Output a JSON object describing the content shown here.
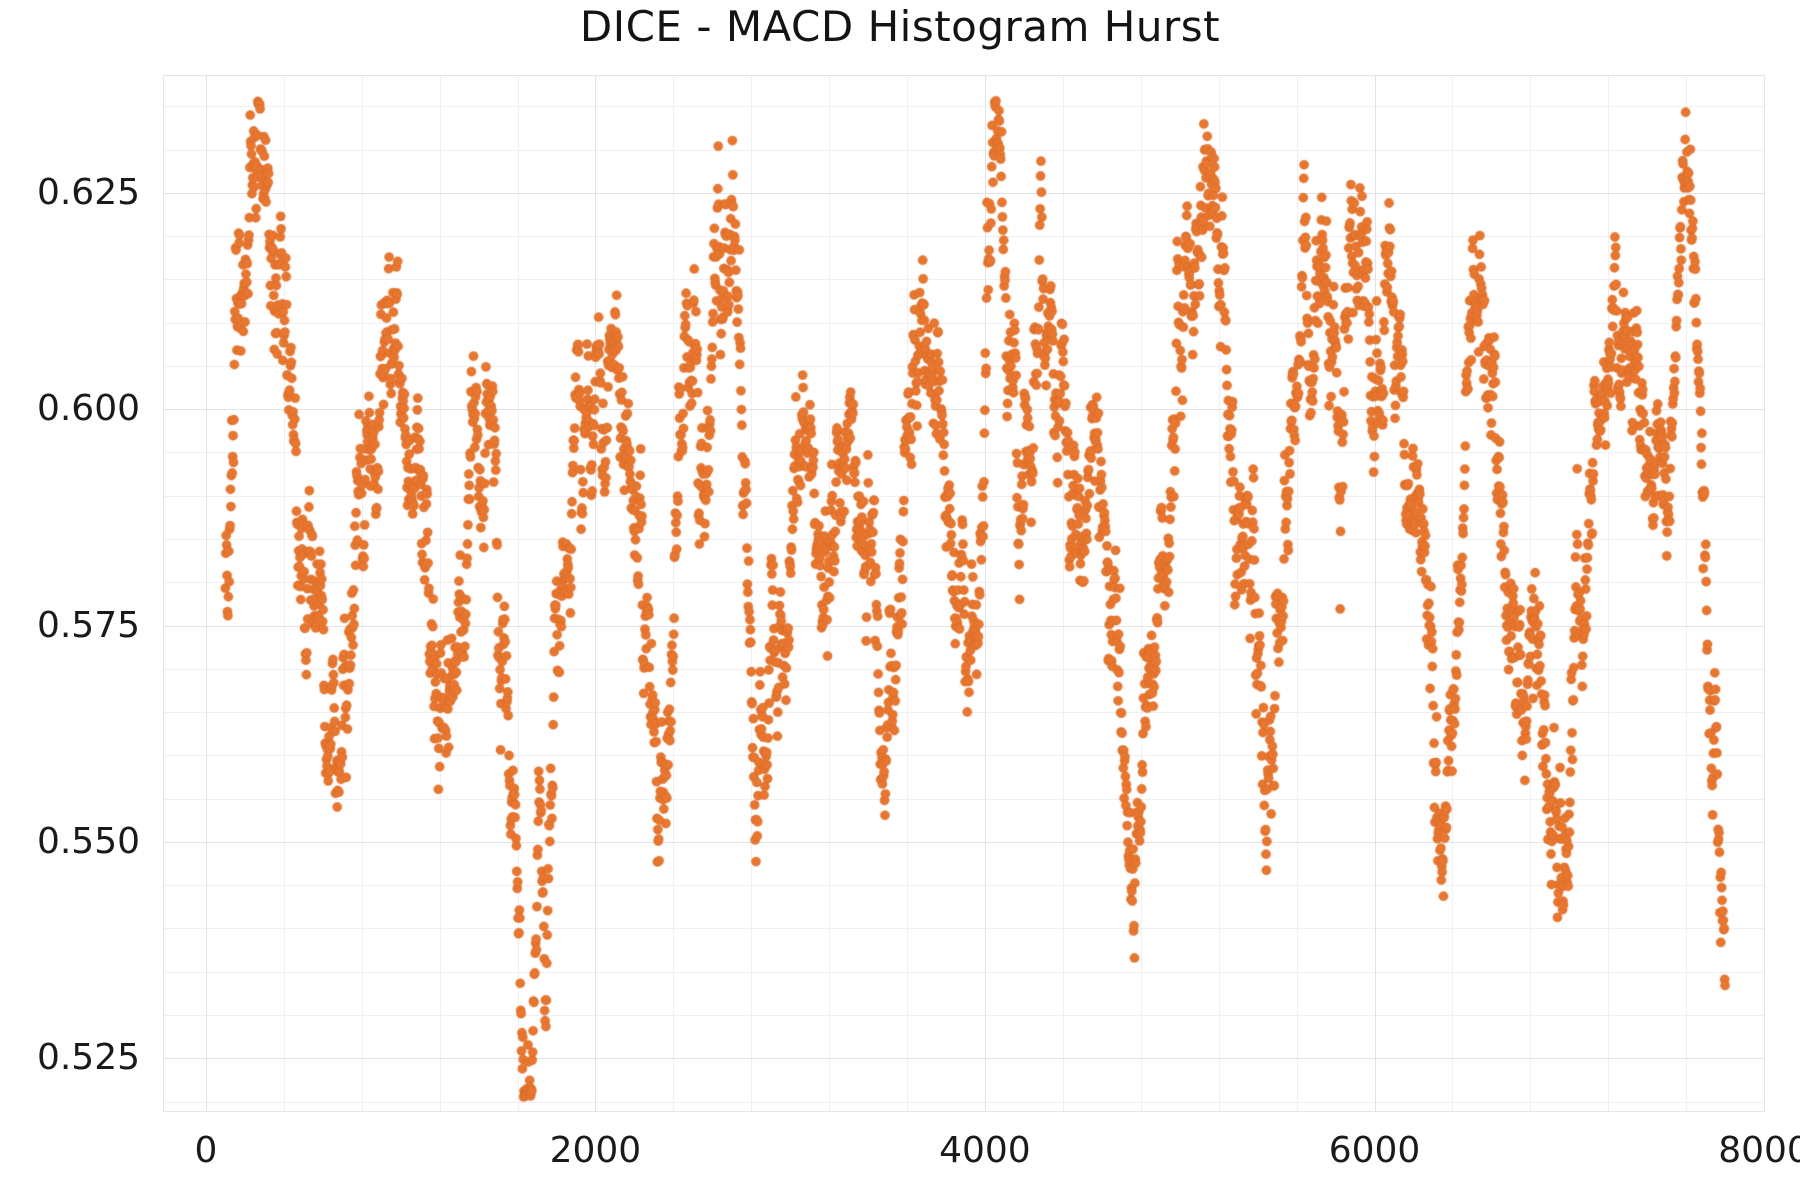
{
  "chart_data": {
    "type": "scatter",
    "title": "DICE - MACD Histogram Hurst",
    "xlabel": "",
    "ylabel": "",
    "xlim": [
      -215,
      8000
    ],
    "ylim": [
      0.5189,
      0.6385
    ],
    "grid": {
      "show": true,
      "major_color": "#e2e2ea",
      "minor_color": "#efeff4"
    },
    "x_ticks": {
      "values": [
        0,
        2000,
        4000,
        6000,
        8000
      ],
      "labels": [
        "0",
        "2000",
        "4000",
        "6000",
        "8000"
      ],
      "minor_step": 400
    },
    "y_ticks": {
      "values": [
        0.525,
        0.55,
        0.575,
        0.6,
        0.625
      ],
      "labels": [
        "0.525",
        "0.550",
        "0.575",
        "0.600",
        "0.625"
      ],
      "minor_step": 0.005
    },
    "marker": {
      "color": "#e8762f",
      "edge_color": "#c9611f",
      "radius_px": 4.65
    },
    "series": [
      {
        "name": "hurst",
        "n_points": 3500,
        "x_start": 100,
        "x_end": 7800,
        "y_clip": [
          0.5205,
          0.6358
        ],
        "texture": {
          "ar": 0.9,
          "ar_sigma": 0.003,
          "micro_sigma": 0.0012,
          "jump_prob": 0.02,
          "jump_amp": 0.007
        },
        "waypoints": [
          [
            100,
            0.582
          ],
          [
            130,
            0.592
          ],
          [
            170,
            0.603
          ],
          [
            210,
            0.612
          ],
          [
            260,
            0.618
          ],
          [
            320,
            0.621
          ],
          [
            380,
            0.615
          ],
          [
            420,
            0.605
          ],
          [
            470,
            0.592
          ],
          [
            520,
            0.578
          ],
          [
            560,
            0.568
          ],
          [
            620,
            0.558
          ],
          [
            680,
            0.562
          ],
          [
            740,
            0.574
          ],
          [
            800,
            0.588
          ],
          [
            860,
            0.596
          ],
          [
            920,
            0.605
          ],
          [
            950,
            0.612
          ],
          [
            990,
            0.604
          ],
          [
            1030,
            0.596
          ],
          [
            1080,
            0.588
          ],
          [
            1120,
            0.576
          ],
          [
            1180,
            0.562
          ],
          [
            1220,
            0.556
          ],
          [
            1280,
            0.568
          ],
          [
            1340,
            0.582
          ],
          [
            1390,
            0.6
          ],
          [
            1420,
            0.594
          ],
          [
            1470,
            0.585
          ],
          [
            1510,
            0.572
          ],
          [
            1545,
            0.56
          ],
          [
            1575,
            0.548
          ],
          [
            1605,
            0.536
          ],
          [
            1630,
            0.527
          ],
          [
            1650,
            0.5235
          ],
          [
            1670,
            0.53
          ],
          [
            1690,
            0.545
          ],
          [
            1710,
            0.556
          ],
          [
            1730,
            0.548
          ],
          [
            1750,
            0.5445
          ],
          [
            1770,
            0.558
          ],
          [
            1800,
            0.572
          ],
          [
            1850,
            0.585
          ],
          [
            1900,
            0.596
          ],
          [
            1950,
            0.604
          ],
          [
            2000,
            0.609
          ],
          [
            2050,
            0.6
          ],
          [
            2100,
            0.608
          ],
          [
            2120,
            0.614
          ],
          [
            2160,
            0.6
          ],
          [
            2200,
            0.59
          ],
          [
            2240,
            0.582
          ],
          [
            2290,
            0.565
          ],
          [
            2320,
            0.5525
          ],
          [
            2350,
            0.562
          ],
          [
            2400,
            0.578
          ],
          [
            2430,
            0.596
          ],
          [
            2460,
            0.608
          ],
          [
            2490,
            0.612
          ],
          [
            2520,
            0.6
          ],
          [
            2560,
            0.592
          ],
          [
            2600,
            0.6
          ],
          [
            2640,
            0.61
          ],
          [
            2680,
            0.618
          ],
          [
            2705,
            0.623
          ],
          [
            2730,
            0.61
          ],
          [
            2770,
            0.592
          ],
          [
            2800,
            0.57
          ],
          [
            2825,
            0.5535
          ],
          [
            2850,
            0.565
          ],
          [
            2900,
            0.578
          ],
          [
            2950,
            0.585
          ],
          [
            3000,
            0.578
          ],
          [
            3050,
            0.59
          ],
          [
            3100,
            0.598
          ],
          [
            3150,
            0.588
          ],
          [
            3200,
            0.58
          ],
          [
            3250,
            0.592
          ],
          [
            3300,
            0.602
          ],
          [
            3350,
            0.596
          ],
          [
            3400,
            0.585
          ],
          [
            3460,
            0.572
          ],
          [
            3500,
            0.552
          ],
          [
            3530,
            0.57
          ],
          [
            3580,
            0.585
          ],
          [
            3620,
            0.6
          ],
          [
            3660,
            0.608
          ],
          [
            3700,
            0.612
          ],
          [
            3740,
            0.602
          ],
          [
            3790,
            0.592
          ],
          [
            3840,
            0.582
          ],
          [
            3880,
            0.572
          ],
          [
            3920,
            0.562
          ],
          [
            3960,
            0.578
          ],
          [
            3990,
            0.598
          ],
          [
            4010,
            0.614
          ],
          [
            4030,
            0.625
          ],
          [
            4050,
            0.6335
          ],
          [
            4070,
            0.625
          ],
          [
            4090,
            0.614
          ],
          [
            4110,
            0.605
          ],
          [
            4140,
            0.598
          ],
          [
            4180,
            0.59
          ],
          [
            4220,
            0.598
          ],
          [
            4260,
            0.606
          ],
          [
            4300,
            0.613
          ],
          [
            4340,
            0.617
          ],
          [
            4370,
            0.608
          ],
          [
            4410,
            0.598
          ],
          [
            4450,
            0.59
          ],
          [
            4490,
            0.582
          ],
          [
            4540,
            0.59
          ],
          [
            4590,
            0.598
          ],
          [
            4630,
            0.588
          ],
          [
            4670,
            0.575
          ],
          [
            4710,
            0.563
          ],
          [
            4760,
            0.5525
          ],
          [
            4800,
            0.56
          ],
          [
            4850,
            0.572
          ],
          [
            4900,
            0.584
          ],
          [
            4950,
            0.596
          ],
          [
            5000,
            0.606
          ],
          [
            5050,
            0.615
          ],
          [
            5100,
            0.622
          ],
          [
            5140,
            0.6265
          ],
          [
            5180,
            0.616
          ],
          [
            5230,
            0.605
          ],
          [
            5290,
            0.594
          ],
          [
            5340,
            0.584
          ],
          [
            5390,
            0.574
          ],
          [
            5440,
            0.5655
          ],
          [
            5490,
            0.576
          ],
          [
            5540,
            0.588
          ],
          [
            5590,
            0.596
          ],
          [
            5640,
            0.604
          ],
          [
            5690,
            0.612
          ],
          [
            5730,
            0.619
          ],
          [
            5770,
            0.608
          ],
          [
            5820,
            0.6
          ],
          [
            5870,
            0.612
          ],
          [
            5910,
            0.62
          ],
          [
            5950,
            0.608
          ],
          [
            6000,
            0.598
          ],
          [
            6050,
            0.606
          ],
          [
            6090,
            0.618
          ],
          [
            6150,
            0.602
          ],
          [
            6200,
            0.59
          ],
          [
            6260,
            0.578
          ],
          [
            6300,
            0.564
          ],
          [
            6345,
            0.5495
          ],
          [
            6390,
            0.562
          ],
          [
            6430,
            0.58
          ],
          [
            6470,
            0.596
          ],
          [
            6500,
            0.608
          ],
          [
            6530,
            0.6185
          ],
          [
            6560,
            0.612
          ],
          [
            6600,
            0.602
          ],
          [
            6650,
            0.59
          ],
          [
            6690,
            0.578
          ],
          [
            6730,
            0.5655
          ],
          [
            6770,
            0.574
          ],
          [
            6810,
            0.582
          ],
          [
            6850,
            0.573
          ],
          [
            6890,
            0.5635
          ],
          [
            6930,
            0.5555
          ],
          [
            6975,
            0.548
          ],
          [
            7010,
            0.558
          ],
          [
            7050,
            0.57
          ],
          [
            7090,
            0.58
          ],
          [
            7130,
            0.59
          ],
          [
            7180,
            0.599
          ],
          [
            7230,
            0.608
          ],
          [
            7280,
            0.6135
          ],
          [
            7330,
            0.604
          ],
          [
            7380,
            0.593
          ],
          [
            7430,
            0.583
          ],
          [
            7470,
            0.592
          ],
          [
            7510,
            0.602
          ],
          [
            7550,
            0.6125
          ],
          [
            7595,
            0.621
          ],
          [
            7640,
            0.61
          ],
          [
            7660,
            0.602
          ],
          [
            7690,
            0.588
          ],
          [
            7715,
            0.576
          ],
          [
            7740,
            0.5635
          ],
          [
            7760,
            0.552
          ],
          [
            7775,
            0.5425
          ],
          [
            7788,
            0.5335
          ],
          [
            7800,
            0.527
          ]
        ]
      }
    ]
  }
}
